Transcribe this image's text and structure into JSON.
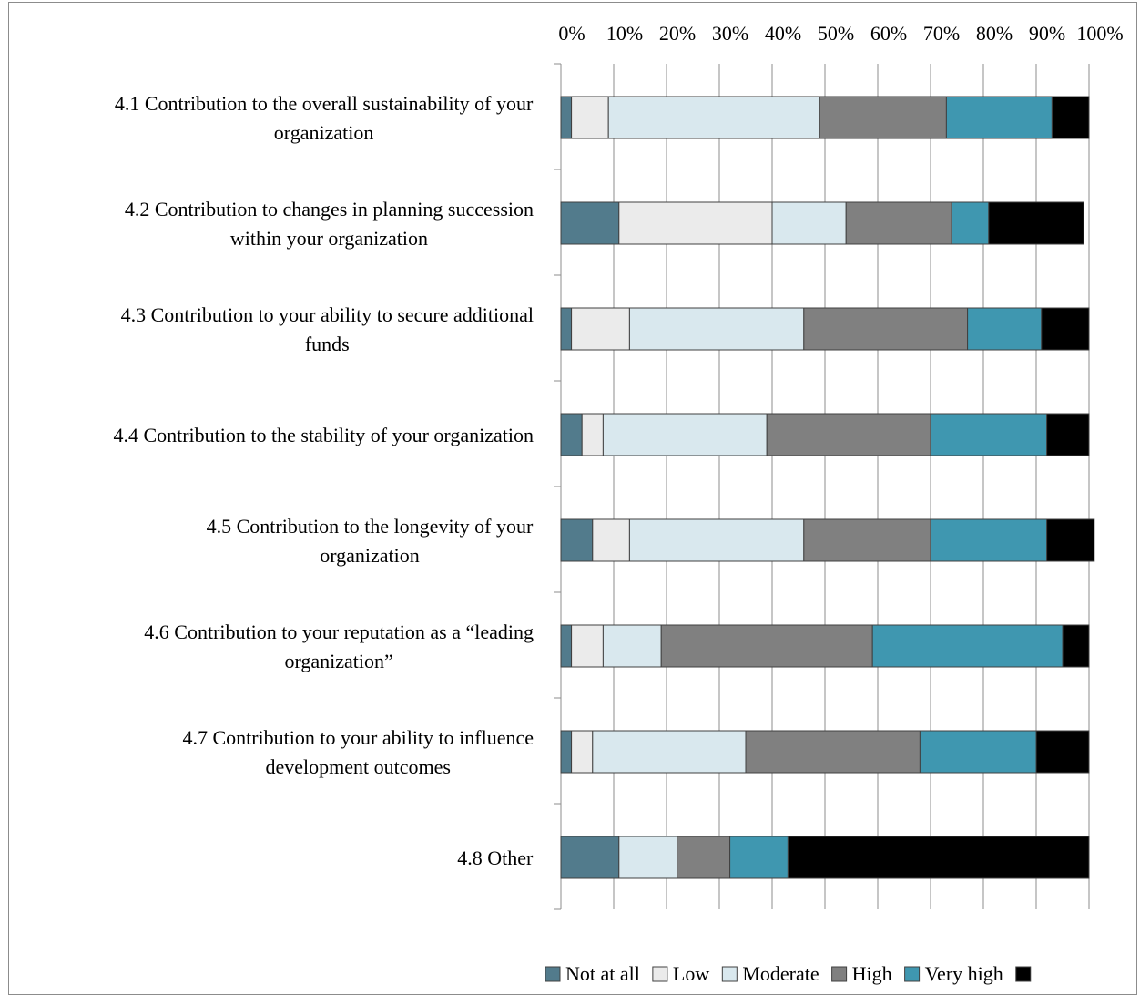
{
  "chart_data": {
    "type": "bar",
    "orientation": "horizontal",
    "stacked": "percent",
    "categories": [
      [
        "4.1 Contribution to the overall sustainability of your",
        "organization"
      ],
      [
        "4.2 Contribution to changes in planning succession",
        "within your organization"
      ],
      [
        "4.3 Contribution to your ability to secure additional",
        "funds"
      ],
      [
        "4.4 Contribution to the stability of your organization"
      ],
      [
        "4.5 Contribution to the longevity of your",
        "organization"
      ],
      [
        "4.6 Contribution to your reputation as a “leading",
        "organization”"
      ],
      [
        "4.7 Contribution to your ability to influence",
        "development outcomes"
      ],
      [
        "4.8 Other"
      ]
    ],
    "xlim": [
      0,
      100
    ],
    "x_ticks": [
      "0%",
      "10%",
      "20%",
      "30%",
      "40%",
      "50%",
      "60%",
      "70%",
      "80%",
      "90%",
      "100%"
    ],
    "grid": "vertical",
    "legend_position": "bottom",
    "series": [
      {
        "name": "Not at all",
        "color": "#527b8c",
        "values": [
          2,
          11,
          2,
          4,
          6,
          2,
          2,
          11
        ]
      },
      {
        "name": "Low",
        "color": "#ebebeb",
        "values": [
          7,
          29,
          11,
          4,
          7,
          6,
          4,
          0
        ]
      },
      {
        "name": "Moderate",
        "color": "#d9e8ee",
        "values": [
          40,
          14,
          33,
          31,
          33,
          11,
          29,
          11
        ]
      },
      {
        "name": "High",
        "color": "#808080",
        "values": [
          24,
          20,
          31,
          31,
          24,
          40,
          33,
          10
        ]
      },
      {
        "name": "Very high",
        "color": "#3f97b0",
        "values": [
          20,
          7,
          14,
          22,
          22,
          36,
          22,
          11
        ]
      },
      {
        "name": "",
        "color": "#000000",
        "values": [
          7,
          18,
          9,
          8,
          9,
          5,
          10,
          57
        ]
      }
    ]
  }
}
